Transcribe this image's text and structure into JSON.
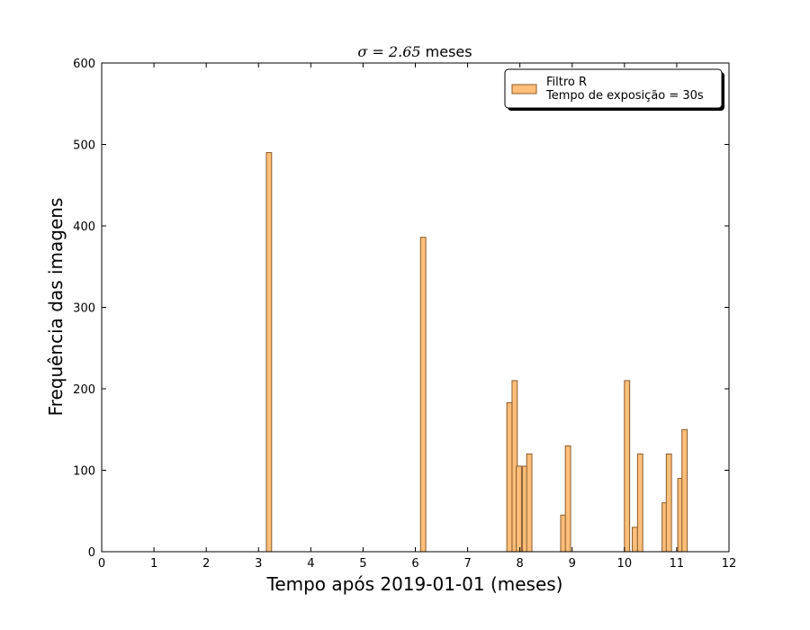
{
  "chart_data": {
    "type": "bar",
    "title_prefix": "σ = 2.65",
    "title_suffix": " meses",
    "xlabel": "Tempo após 2019-01-01 (meses)",
    "ylabel": "Frequência das imagens",
    "xlim": [
      0,
      12
    ],
    "ylim": [
      0,
      600
    ],
    "xticks": [
      "0",
      "1",
      "2",
      "3",
      "4",
      "5",
      "6",
      "7",
      "8",
      "9",
      "10",
      "11",
      "12"
    ],
    "yticks": [
      "0",
      "100",
      "200",
      "300",
      "400",
      "500",
      "600"
    ],
    "grid": false,
    "legend_position": "top-right",
    "legend": [
      "Filtro R",
      "Tempo de exposição = 30s"
    ],
    "bar_color": "#ffbf7a",
    "bar_edge_color": "#8a5a2a",
    "series": [
      {
        "name": "Filtro R",
        "points": [
          {
            "x": 3.2,
            "y": 490
          },
          {
            "x": 6.15,
            "y": 386
          },
          {
            "x": 7.8,
            "y": 183
          },
          {
            "x": 7.9,
            "y": 210
          },
          {
            "x": 7.98,
            "y": 105
          },
          {
            "x": 8.1,
            "y": 105
          },
          {
            "x": 8.18,
            "y": 120
          },
          {
            "x": 8.83,
            "y": 45
          },
          {
            "x": 8.92,
            "y": 130
          },
          {
            "x": 10.05,
            "y": 210
          },
          {
            "x": 10.2,
            "y": 30
          },
          {
            "x": 10.3,
            "y": 120
          },
          {
            "x": 10.77,
            "y": 60
          },
          {
            "x": 10.85,
            "y": 120
          },
          {
            "x": 11.07,
            "y": 90
          },
          {
            "x": 11.15,
            "y": 150
          }
        ]
      }
    ]
  }
}
